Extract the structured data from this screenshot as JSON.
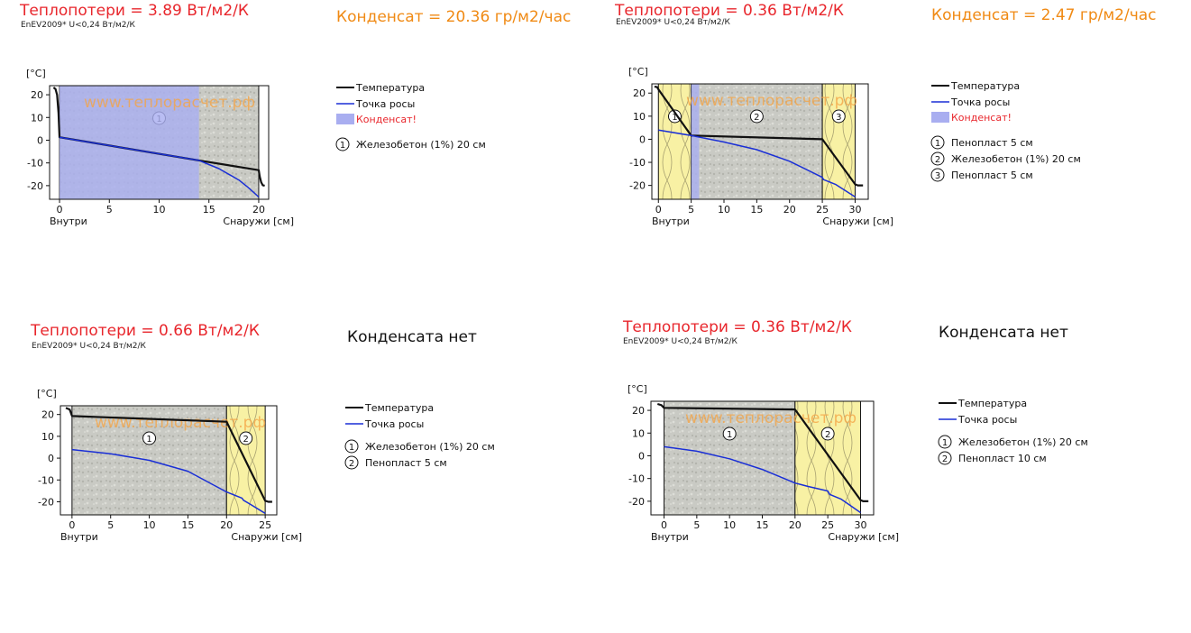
{
  "chart_data": [
    {
      "type": "line",
      "heat_loss": "Теплопотери = 3.89 Вт/м2/К",
      "norm": "EnEV2009* U<0,24 Вт/м2/К",
      "condensate": "Конденсат = 20.36 гр/м2/час",
      "ylabel": "[°C]",
      "x_inside_label": "Внутри",
      "x_outside_label": "Снаружи [см]",
      "xlim": [
        -1,
        21
      ],
      "ylim": [
        -26,
        24
      ],
      "xticks": [
        0,
        5,
        10,
        15,
        20
      ],
      "yticks": [
        20,
        10,
        0,
        -10,
        -20
      ],
      "watermark": "www.теплорасчет.рф",
      "layers": [
        {
          "num": "1",
          "material": "concrete",
          "x0": 0,
          "x1": 20
        }
      ],
      "condensate_zone": [
        0,
        14
      ],
      "series": [
        {
          "name": "Температура",
          "color": "#111111",
          "x": [
            -0.6,
            -0.4,
            -0.25,
            -0.1,
            0,
            14,
            20,
            20.1,
            20.25,
            20.4,
            20.6
          ],
          "y": [
            23.2,
            22.5,
            20,
            12,
            1.3,
            -8.9,
            -13.2,
            -16,
            -18.5,
            -19.8,
            -20
          ]
        },
        {
          "name": "Точка росы",
          "color": "#1a2fd6",
          "x": [
            0,
            14,
            16,
            18,
            19,
            20
          ],
          "y": [
            1.3,
            -8.9,
            -12.5,
            -17.5,
            -21,
            -25
          ]
        }
      ],
      "legend": {
        "temp": "Температура",
        "dew": "Точка росы",
        "cond": "Конденсат!",
        "items": [
          {
            "num": "1",
            "text": "Железобетон (1%) 20 см"
          }
        ]
      }
    },
    {
      "type": "line",
      "heat_loss": "Теплопотери = 0.36 Вт/м2/К",
      "norm": "EnEV2009* U<0,24 Вт/м2/К",
      "condensate": "Конденсат = 2.47 гр/м2/час",
      "ylabel": "[°C]",
      "x_inside_label": "Внутри",
      "x_outside_label": "Снаружи [см]",
      "xlim": [
        -1,
        32
      ],
      "ylim": [
        -26,
        24
      ],
      "xticks": [
        0,
        5,
        10,
        15,
        20,
        25,
        30
      ],
      "yticks": [
        20,
        10,
        0,
        -10,
        -20
      ],
      "watermark": "www.теплорасчет.рф",
      "layers": [
        {
          "num": "1",
          "material": "foam",
          "x0": 0,
          "x1": 5
        },
        {
          "num": "2",
          "material": "concrete",
          "x0": 5,
          "x1": 25
        },
        {
          "num": "3",
          "material": "foam",
          "x0": 25,
          "x1": 30
        }
      ],
      "condensate_zone": [
        5,
        6.2
      ],
      "series": [
        {
          "name": "Температура",
          "color": "#111111",
          "x": [
            -0.6,
            -0.2,
            0,
            5,
            25,
            30,
            30.4,
            31.2
          ],
          "y": [
            22.8,
            22.6,
            21.6,
            1.6,
            0,
            -19.5,
            -20,
            -20
          ]
        },
        {
          "name": "Точка росы",
          "color": "#1a2fd6",
          "x": [
            0,
            5,
            10,
            15,
            20,
            25,
            25.2,
            27,
            30
          ],
          "y": [
            4,
            1.6,
            -1.2,
            -4.5,
            -9.5,
            -16.5,
            -17.5,
            -19.5,
            -25
          ]
        }
      ],
      "legend": {
        "temp": "Температура",
        "dew": "Точка росы",
        "cond": "Конденсат!",
        "items": [
          {
            "num": "1",
            "text": "Пенопласт 5 см"
          },
          {
            "num": "2",
            "text": "Железобетон (1%) 20 см"
          },
          {
            "num": "3",
            "text": "Пенопласт 5 см"
          }
        ]
      }
    },
    {
      "type": "line",
      "heat_loss": "Теплопотери = 0.66 Вт/м2/К",
      "norm": "EnEV2009* U<0,24 Вт/м2/К",
      "condensate": "Конденсата нет",
      "ylabel": "[°C]",
      "x_inside_label": "Внутри",
      "x_outside_label": "Снаружи [см]",
      "xlim": [
        -1.5,
        26.5
      ],
      "ylim": [
        -26,
        24
      ],
      "xticks": [
        0,
        5,
        10,
        15,
        20,
        25
      ],
      "yticks": [
        20,
        10,
        0,
        -10,
        -20
      ],
      "watermark": "www.теплорасчет.рф",
      "layers": [
        {
          "num": "1",
          "material": "concrete",
          "x0": 0,
          "x1": 20
        },
        {
          "num": "2",
          "material": "foam",
          "x0": 20,
          "x1": 25
        }
      ],
      "condensate_zone": null,
      "series": [
        {
          "name": "Температура",
          "color": "#111111",
          "x": [
            -0.8,
            -0.3,
            0,
            20,
            25,
            25.4,
            25.9
          ],
          "y": [
            23,
            22.3,
            19.3,
            16.7,
            -19.5,
            -20,
            -20
          ]
        },
        {
          "name": "Точка росы",
          "color": "#1a2fd6",
          "x": [
            0,
            5,
            10,
            15,
            20,
            22,
            22.2,
            23,
            25
          ],
          "y": [
            3.9,
            2,
            -1,
            -6,
            -15.5,
            -18.3,
            -19.3,
            -21,
            -25.3
          ]
        }
      ],
      "legend": {
        "temp": "Температура",
        "dew": "Точка росы",
        "cond": "",
        "items": [
          {
            "num": "1",
            "text": "Железобетон (1%) 20 см"
          },
          {
            "num": "2",
            "text": "Пенопласт 5 см"
          }
        ]
      }
    },
    {
      "type": "line",
      "heat_loss": "Теплопотери = 0.36 Вт/м2/К",
      "norm": "EnEV2009* U<0,24 Вт/м2/К",
      "condensate": "Конденсата нет",
      "ylabel": "[°C]",
      "x_inside_label": "Внутри",
      "x_outside_label": "Снаружи [см]",
      "xlim": [
        -2,
        32
      ],
      "ylim": [
        -26,
        24
      ],
      "xticks": [
        0,
        5,
        10,
        15,
        20,
        25,
        30
      ],
      "yticks": [
        20,
        10,
        0,
        -10,
        -20
      ],
      "watermark": "www.теплорасчет.рф",
      "layers": [
        {
          "num": "1",
          "material": "concrete",
          "x0": 0,
          "x1": 20
        },
        {
          "num": "2",
          "material": "foam",
          "x0": 20,
          "x1": 30
        }
      ],
      "condensate_zone": null,
      "series": [
        {
          "name": "Температура",
          "color": "#111111",
          "x": [
            -1,
            -0.4,
            0,
            20,
            30,
            30.4,
            31.2
          ],
          "y": [
            22.8,
            22.3,
            21.1,
            20.4,
            -19.5,
            -20,
            -20
          ]
        },
        {
          "name": "Точка росы",
          "color": "#1a2fd6",
          "x": [
            0,
            5,
            10,
            15,
            20,
            22,
            25,
            25.3,
            27,
            30
          ],
          "y": [
            4,
            2,
            -1.3,
            -6,
            -12,
            -13.5,
            -15.5,
            -17,
            -19,
            -25
          ]
        }
      ],
      "legend": {
        "temp": "Температура",
        "dew": "Точка росы",
        "cond": "",
        "items": [
          {
            "num": "1",
            "text": "Железобетон (1%) 20 см"
          },
          {
            "num": "2",
            "text": "Пенопласт 10 см"
          }
        ]
      }
    }
  ]
}
